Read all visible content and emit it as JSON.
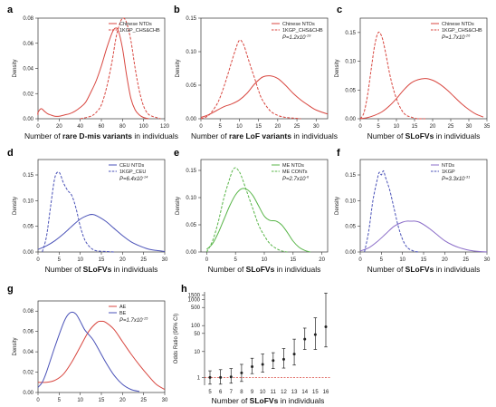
{
  "colors": {
    "red": "#d8463f",
    "blue": "#4a52b8",
    "green": "#58b548",
    "purple": "#8b6dc8",
    "axis": "#333333"
  },
  "chart_data": [
    {
      "id": "a",
      "type": "line",
      "xlabel_parts": [
        {
          "t": "Number of "
        },
        {
          "t": "rare D-mis variants",
          "b": true
        },
        {
          "t": " in individuals"
        }
      ],
      "ylabel": "Density",
      "xlim": [
        0,
        120
      ],
      "xticks": [
        0,
        20,
        40,
        60,
        80,
        100,
        120
      ],
      "ylim": [
        0,
        0.08
      ],
      "yticks": [
        0,
        0.02,
        0.04,
        0.06,
        0.08
      ],
      "ytick_labels": [
        "0.00",
        "0.02",
        "0.04",
        "0.06",
        "0.08"
      ],
      "legend": [
        {
          "name": "Chinese NTDs",
          "color": "red",
          "dash": false
        },
        {
          "name": "1KGP_CHS&CHB",
          "color": "red",
          "dash": true
        }
      ],
      "pvalue": null,
      "series": [
        {
          "name": "Chinese NTDs",
          "color": "red",
          "dash": false,
          "x": [
            -5,
            0,
            3,
            6,
            9,
            12,
            16,
            20,
            25,
            30,
            35,
            40,
            45,
            50,
            55,
            60,
            65,
            70,
            73,
            76,
            80,
            84,
            88,
            92,
            96,
            100,
            105
          ],
          "y": [
            0.003,
            0.005,
            0.008,
            0.006,
            0.004,
            0.003,
            0.002,
            0.002,
            0.003,
            0.004,
            0.006,
            0.009,
            0.013,
            0.021,
            0.03,
            0.042,
            0.056,
            0.068,
            0.072,
            0.07,
            0.056,
            0.034,
            0.016,
            0.007,
            0.003,
            0.001,
            0.0
          ]
        },
        {
          "name": "1KGP_CHS&CHB",
          "color": "red",
          "dash": true,
          "x": [
            40,
            50,
            55,
            60,
            65,
            70,
            74,
            78,
            81,
            84,
            88,
            92,
            96,
            100,
            104,
            108,
            112,
            116
          ],
          "y": [
            0.0,
            0.002,
            0.005,
            0.011,
            0.025,
            0.045,
            0.065,
            0.077,
            0.08,
            0.076,
            0.062,
            0.04,
            0.022,
            0.01,
            0.004,
            0.002,
            0.001,
            0.0
          ]
        }
      ]
    },
    {
      "id": "b",
      "type": "line",
      "xlabel_parts": [
        {
          "t": "Number of "
        },
        {
          "t": "rare LoF variants",
          "b": true
        },
        {
          "t": " in individuals"
        }
      ],
      "ylabel": "Density",
      "xlim": [
        0,
        33
      ],
      "xticks": [
        0,
        5,
        10,
        15,
        20,
        25,
        30
      ],
      "ylim": [
        0,
        0.15
      ],
      "yticks": [
        0,
        0.05,
        0.1,
        0.15
      ],
      "ytick_labels": [
        "0.00",
        "0.05",
        "0.10",
        "0.15"
      ],
      "legend": [
        {
          "name": "Chinese NTDs",
          "color": "red",
          "dash": false
        },
        {
          "name": "1KGP_CHS&CHB",
          "color": "red",
          "dash": true
        }
      ],
      "pvalue": {
        "base": "P=1.2x10",
        "exp": "-19"
      },
      "series": [
        {
          "name": "Chinese NTDs",
          "color": "red",
          "dash": false,
          "x": [
            0,
            2,
            4,
            6,
            8,
            10,
            12,
            14,
            16,
            18,
            20,
            22,
            24,
            26,
            28,
            30,
            33
          ],
          "y": [
            0.002,
            0.006,
            0.012,
            0.018,
            0.022,
            0.028,
            0.038,
            0.052,
            0.062,
            0.064,
            0.06,
            0.05,
            0.038,
            0.028,
            0.02,
            0.013,
            0.007
          ]
        },
        {
          "name": "1KGP_CHS&CHB",
          "color": "red",
          "dash": true,
          "x": [
            0,
            2,
            4,
            5,
            6,
            7,
            8,
            9,
            10,
            11,
            12,
            13,
            14,
            15,
            16,
            18,
            20,
            22,
            24,
            26
          ],
          "y": [
            0.0,
            0.005,
            0.02,
            0.032,
            0.048,
            0.066,
            0.085,
            0.103,
            0.117,
            0.112,
            0.095,
            0.077,
            0.06,
            0.042,
            0.028,
            0.012,
            0.005,
            0.002,
            0.001,
            0.0
          ]
        }
      ]
    },
    {
      "id": "c",
      "type": "line",
      "xlabel_parts": [
        {
          "t": "Number of "
        },
        {
          "t": "SLoFVs",
          "b": true
        },
        {
          "t": " in individuals"
        }
      ],
      "ylabel": "Density",
      "xlim": [
        0,
        35
      ],
      "xticks": [
        0,
        5,
        10,
        15,
        20,
        25,
        30,
        35
      ],
      "ylim": [
        0,
        0.175
      ],
      "yticks": [
        0,
        0.05,
        0.1,
        0.15
      ],
      "ytick_labels": [
        "0.00",
        "0.05",
        "0.10",
        "0.15"
      ],
      "legend": [
        {
          "name": "Chinese NTDs",
          "color": "red",
          "dash": false
        },
        {
          "name": "1KGP_CHS&CHB",
          "color": "red",
          "dash": true
        }
      ],
      "pvalue": {
        "base": "P=1.7x10",
        "exp": "-26"
      },
      "series": [
        {
          "name": "Chinese NTDs",
          "color": "red",
          "dash": false,
          "x": [
            0,
            2,
            4,
            6,
            8,
            10,
            12,
            14,
            16,
            18,
            20,
            22,
            24,
            26,
            28,
            30,
            32,
            34
          ],
          "y": [
            0.0,
            0.002,
            0.006,
            0.012,
            0.022,
            0.035,
            0.05,
            0.062,
            0.068,
            0.07,
            0.067,
            0.06,
            0.05,
            0.038,
            0.026,
            0.016,
            0.008,
            0.003
          ]
        },
        {
          "name": "1KGP_CHS&CHB",
          "color": "red",
          "dash": true,
          "x": [
            0,
            1,
            2,
            3,
            4,
            5,
            6,
            7,
            8,
            9,
            10,
            11,
            12,
            13,
            14,
            15,
            16,
            18
          ],
          "y": [
            0.0,
            0.01,
            0.04,
            0.085,
            0.128,
            0.15,
            0.142,
            0.115,
            0.082,
            0.055,
            0.035,
            0.02,
            0.01,
            0.005,
            0.003,
            0.001,
            0.0,
            0.0
          ]
        }
      ]
    },
    {
      "id": "d",
      "type": "line",
      "xlabel_parts": [
        {
          "t": "Number of "
        },
        {
          "t": "SLoFVs",
          "b": true
        },
        {
          "t": " in individuals"
        }
      ],
      "ylabel": "Density",
      "xlim": [
        0,
        30
      ],
      "xticks": [
        0,
        5,
        10,
        15,
        20,
        25,
        30
      ],
      "ylim": [
        0,
        0.18
      ],
      "yticks": [
        0,
        0.05,
        0.1,
        0.15
      ],
      "ytick_labels": [
        "0.00",
        "0.05",
        "0.10",
        "0.15"
      ],
      "legend": [
        {
          "name": "CEU NTDs",
          "color": "blue",
          "dash": false
        },
        {
          "name": "1KGP_CEU",
          "color": "blue",
          "dash": true
        }
      ],
      "pvalue": {
        "base": "P=6.4x10",
        "exp": "-14"
      },
      "series": [
        {
          "name": "CEU NTDs",
          "color": "blue",
          "dash": false,
          "x": [
            0,
            2,
            4,
            6,
            8,
            10,
            12,
            13,
            14,
            16,
            18,
            20,
            22,
            24,
            26,
            28,
            30
          ],
          "y": [
            0.005,
            0.012,
            0.022,
            0.035,
            0.05,
            0.064,
            0.072,
            0.073,
            0.07,
            0.06,
            0.046,
            0.032,
            0.02,
            0.012,
            0.006,
            0.003,
            0.001
          ]
        },
        {
          "name": "1KGP_CEU",
          "color": "blue",
          "dash": true,
          "x": [
            1,
            2,
            3,
            4,
            5,
            6,
            7,
            8,
            9,
            10,
            11,
            12,
            13,
            14,
            16,
            18
          ],
          "y": [
            0.0,
            0.03,
            0.09,
            0.145,
            0.155,
            0.135,
            0.12,
            0.11,
            0.085,
            0.05,
            0.025,
            0.012,
            0.005,
            0.002,
            0.001,
            0.0
          ]
        }
      ]
    },
    {
      "id": "e",
      "type": "line",
      "xlabel_parts": [
        {
          "t": "Number of "
        },
        {
          "t": "SLoFVs",
          "b": true
        },
        {
          "t": " in individuals"
        }
      ],
      "ylabel": "Density",
      "xlim": [
        -1,
        21
      ],
      "xticks": [
        0,
        5,
        10,
        15,
        20
      ],
      "ylim": [
        0,
        0.17
      ],
      "yticks": [
        0,
        0.05,
        0.1,
        0.15
      ],
      "ytick_labels": [
        "0.00",
        "0.05",
        "0.10",
        "0.15"
      ],
      "legend": [
        {
          "name": "ME NTDs",
          "color": "green",
          "dash": false
        },
        {
          "name": "ME CONTs",
          "color": "green",
          "dash": true
        }
      ],
      "pvalue": {
        "base": "P=2.7x10",
        "exp": "-6"
      },
      "series": [
        {
          "name": "ME NTDs",
          "color": "green",
          "dash": false,
          "x": [
            0,
            1,
            2,
            3,
            4,
            5,
            6,
            7,
            8,
            9,
            10,
            11,
            12,
            13,
            14,
            15,
            16,
            17,
            18
          ],
          "y": [
            0.005,
            0.015,
            0.035,
            0.06,
            0.085,
            0.105,
            0.116,
            0.115,
            0.104,
            0.085,
            0.066,
            0.058,
            0.057,
            0.05,
            0.036,
            0.02,
            0.009,
            0.003,
            0.0
          ]
        },
        {
          "name": "ME CONTs",
          "color": "green",
          "dash": true,
          "x": [
            0,
            1,
            2,
            3,
            4,
            4.5,
            5,
            5.5,
            6,
            7,
            8,
            9,
            10,
            11,
            12,
            13,
            14
          ],
          "y": [
            0.0,
            0.02,
            0.055,
            0.1,
            0.135,
            0.15,
            0.155,
            0.15,
            0.14,
            0.11,
            0.08,
            0.05,
            0.03,
            0.015,
            0.007,
            0.002,
            0.0
          ]
        }
      ]
    },
    {
      "id": "f",
      "type": "line",
      "xlabel_parts": [
        {
          "t": "Number of "
        },
        {
          "t": "SLoFVs",
          "b": true
        },
        {
          "t": " in individuals"
        }
      ],
      "ylabel": "Density",
      "xlim": [
        0,
        30
      ],
      "xticks": [
        0,
        5,
        10,
        15,
        20,
        25,
        30
      ],
      "ylim": [
        0,
        0.18
      ],
      "yticks": [
        0,
        0.05,
        0.1,
        0.15
      ],
      "ytick_labels": [
        "0.00",
        "0.05",
        "0.10",
        "0.15"
      ],
      "legend": [
        {
          "name": "NTDs",
          "color": "purple",
          "dash": false
        },
        {
          "name": "1KGP",
          "color": "blue",
          "dash": true
        }
      ],
      "pvalue": {
        "base": "P=3.3x10",
        "exp": "-31"
      },
      "series": [
        {
          "name": "NTDs",
          "color": "purple",
          "dash": false,
          "x": [
            0,
            2,
            4,
            6,
            8,
            10,
            11,
            12,
            13,
            14,
            16,
            18,
            20,
            22,
            24,
            26,
            28,
            30
          ],
          "y": [
            0.002,
            0.008,
            0.02,
            0.035,
            0.05,
            0.058,
            0.06,
            0.06,
            0.06,
            0.058,
            0.048,
            0.035,
            0.022,
            0.013,
            0.007,
            0.003,
            0.001,
            0.0
          ]
        },
        {
          "name": "1KGP",
          "color": "blue",
          "dash": true,
          "x": [
            1,
            2,
            3,
            4,
            4.5,
            5,
            5.5,
            6,
            7,
            8,
            9,
            10,
            11,
            12,
            13,
            14
          ],
          "y": [
            0.0,
            0.04,
            0.1,
            0.14,
            0.155,
            0.15,
            0.158,
            0.145,
            0.12,
            0.085,
            0.05,
            0.025,
            0.01,
            0.004,
            0.001,
            0.0
          ]
        }
      ]
    },
    {
      "id": "g",
      "type": "line",
      "xlabel_parts": [
        {
          "t": "Number of "
        },
        {
          "t": "SLoFVs",
          "b": true
        },
        {
          "t": " in individuals"
        }
      ],
      "ylabel": "Density",
      "xlim": [
        0,
        30
      ],
      "xticks": [
        0,
        5,
        10,
        15,
        20,
        25,
        30
      ],
      "ylim": [
        0,
        0.09
      ],
      "yticks": [
        0,
        0.02,
        0.04,
        0.06,
        0.08
      ],
      "ytick_labels": [
        "0.00",
        "0.02",
        "0.04",
        "0.06",
        "0.08"
      ],
      "legend": [
        {
          "name": "AE",
          "color": "red",
          "dash": false
        },
        {
          "name": "BE",
          "color": "blue",
          "dash": false
        }
      ],
      "pvalue": {
        "base": "P=1.7x10",
        "exp": "-15"
      },
      "series": [
        {
          "name": "AE",
          "color": "red",
          "dash": false,
          "x": [
            0,
            2,
            4,
            6,
            8,
            10,
            12,
            14,
            15,
            16,
            18,
            20,
            22,
            24,
            26,
            28,
            30
          ],
          "y": [
            0.01,
            0.01,
            0.012,
            0.018,
            0.03,
            0.045,
            0.06,
            0.069,
            0.07,
            0.069,
            0.062,
            0.05,
            0.038,
            0.027,
            0.017,
            0.008,
            0.003
          ]
        },
        {
          "name": "BE",
          "color": "blue",
          "dash": false,
          "x": [
            0,
            1,
            2,
            4,
            6,
            7,
            8,
            9,
            10,
            11,
            12,
            13,
            14,
            16,
            18,
            20,
            22,
            24
          ],
          "y": [
            0.005,
            0.01,
            0.02,
            0.045,
            0.068,
            0.076,
            0.079,
            0.077,
            0.07,
            0.062,
            0.057,
            0.052,
            0.045,
            0.03,
            0.017,
            0.008,
            0.003,
            0.001
          ]
        }
      ]
    }
  ],
  "or_chart": {
    "id": "h",
    "type": "scatter",
    "ylabel": "Odds Ratio (95% CI)",
    "xlabel_parts": [
      {
        "t": "Number of "
      },
      {
        "t": "SLoFVs",
        "b": true
      },
      {
        "t": " in individuals"
      }
    ],
    "categories": [
      "5",
      "6",
      "7",
      "8",
      "9",
      "10",
      "11",
      "12",
      "13",
      "14",
      "15",
      "16"
    ],
    "yticks": [
      1,
      10,
      50,
      100,
      500,
      1000,
      1500
    ],
    "ytick_labels": [
      "1",
      "10",
      "50",
      "100",
      "500",
      "1000",
      "1500"
    ],
    "ylim": [
      0.5,
      2000
    ],
    "reference": 1,
    "values": [
      1.0,
      1.0,
      1.05,
      1.5,
      2.6,
      3.2,
      4.5,
      5.0,
      8.0,
      30,
      45,
      90
    ],
    "lower": [
      0.55,
      0.55,
      0.6,
      0.7,
      1.4,
      1.6,
      2.2,
      2.3,
      3.0,
      12,
      12,
      15
    ],
    "upper": [
      1.8,
      2.0,
      2.2,
      3.2,
      5.5,
      8,
      9,
      13,
      30,
      80,
      200,
      1800
    ]
  }
}
